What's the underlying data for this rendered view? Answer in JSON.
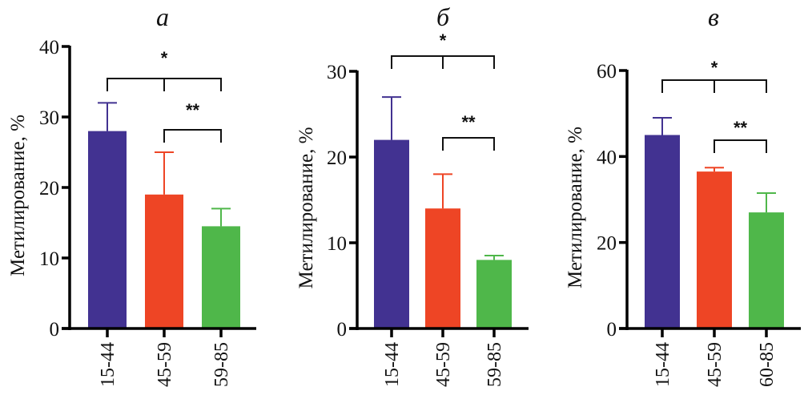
{
  "figure": {
    "colors": {
      "group1": "#423291",
      "group2": "#ee4525",
      "group3": "#4fb74a",
      "axis": "#000000"
    }
  },
  "chart_data": [
    {
      "type": "bar",
      "title": "а",
      "xlabel": "",
      "ylabel": "Метилирование, %",
      "categories": [
        "15-44",
        "45-59",
        "59-85"
      ],
      "values": [
        28,
        19,
        14.5
      ],
      "error_upper": [
        32,
        25,
        17
      ],
      "ylim": [
        0,
        40
      ],
      "yticks": [
        0,
        10,
        20,
        30,
        40
      ],
      "grid": false,
      "legend": "none",
      "significance": [
        {
          "groups": [
            "15-44",
            "45-59",
            "59-85"
          ],
          "label": "*"
        },
        {
          "groups": [
            "45-59",
            "59-85"
          ],
          "label": "**"
        }
      ]
    },
    {
      "type": "bar",
      "title": "б",
      "xlabel": "",
      "ylabel": "Метилирование, %",
      "categories": [
        "15-44",
        "45-59",
        "59-85"
      ],
      "values": [
        22,
        14,
        8
      ],
      "error_upper": [
        27,
        18,
        8.5
      ],
      "ylim": [
        0,
        30
      ],
      "yticks": [
        0,
        10,
        20,
        30
      ],
      "grid": false,
      "legend": "none",
      "significance": [
        {
          "groups": [
            "15-44",
            "45-59",
            "59-85"
          ],
          "label": "*"
        },
        {
          "groups": [
            "45-59",
            "59-85"
          ],
          "label": "**"
        }
      ]
    },
    {
      "type": "bar",
      "title": "в",
      "xlabel": "",
      "ylabel": "Метилирование, %",
      "categories": [
        "15-44",
        "45-59",
        "60-85"
      ],
      "values": [
        45,
        36.5,
        27
      ],
      "error_upper": [
        49,
        37.4,
        31.5
      ],
      "ylim": [
        0,
        60
      ],
      "yticks": [
        0,
        20,
        40,
        60
      ],
      "grid": false,
      "legend": "none",
      "significance": [
        {
          "groups": [
            "15-44",
            "45-59",
            "60-85"
          ],
          "label": "*"
        },
        {
          "groups": [
            "45-59",
            "60-85"
          ],
          "label": "**"
        }
      ]
    }
  ]
}
